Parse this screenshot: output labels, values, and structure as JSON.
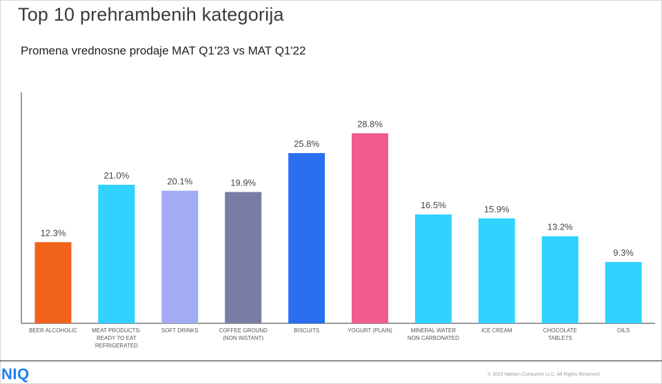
{
  "header": {
    "title": "Top 10 prehrambenih kategorija",
    "subtitle": "Promena vrednosne prodaje MAT Q1'23 vs MAT Q1'22"
  },
  "footer": {
    "logo": "NIQ",
    "copyright": "© 2023 Nielsen Consumer LLC. All Rights Reserved."
  },
  "chart_data": {
    "type": "bar",
    "title": "Top 10 prehrambenih kategorija",
    "subtitle": "Promena vrednosne prodaje MAT Q1'23 vs MAT Q1'22",
    "xlabel": "",
    "ylabel": "",
    "ylim": [
      0,
      35
    ],
    "grid": false,
    "legend": "none",
    "categories": [
      "BEER ALCOHOLIC",
      "MEAT PRODUCTS-\nREADY TO EAT\nREFRIGERATED",
      "SOFT DRINKS",
      "COFFEE GROUND\n(NON INSTANT)",
      "BISCUITS",
      "YOGURT (PLAIN)",
      "MINERAL WATER\nNON CARBONATED",
      "ICE CREAM",
      "CHOCOLATE\nTABLETS",
      "OILS"
    ],
    "values": [
      12.3,
      21.0,
      20.1,
      19.9,
      25.8,
      28.8,
      16.5,
      15.9,
      13.2,
      9.3
    ],
    "value_labels": [
      "12.3%",
      "21.0%",
      "20.1%",
      "19.9%",
      "25.8%",
      "28.8%",
      "16.5%",
      "15.9%",
      "13.2%",
      "9.3%"
    ],
    "colors": [
      "#f0611a",
      "#2fd3fd",
      "#a4abf5",
      "#7a7ca8",
      "#2a6ff2",
      "#f05b90",
      "#2fd3fd",
      "#2fd3fd",
      "#2fd3fd",
      "#2fd3fd"
    ]
  }
}
